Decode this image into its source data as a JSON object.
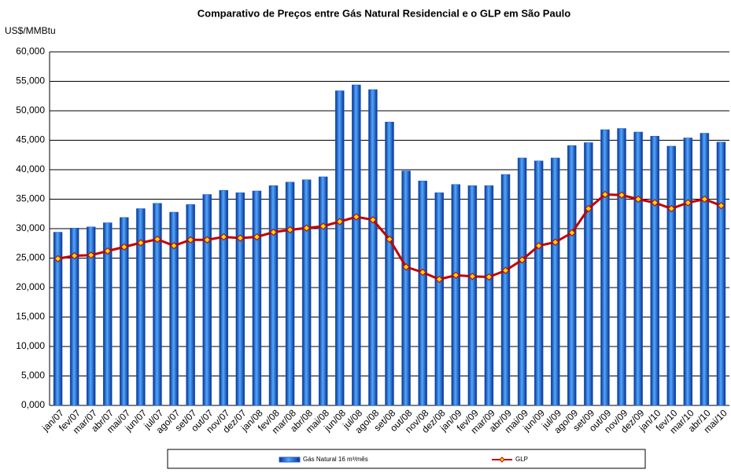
{
  "chart_data": {
    "type": "bar_line",
    "title": "Comparativo de Preços entre Gás Natural Residencial e o GLP em São Paulo",
    "y_label": "US$/MMBtu",
    "categories": [
      "jan/07",
      "fev/07",
      "mar/07",
      "abr/07",
      "mai/07",
      "jun/07",
      "jul/07",
      "ago/07",
      "set/07",
      "out/07",
      "nov/07",
      "dez/07",
      "jan/08",
      "fev/08",
      "mar/08",
      "abr/08",
      "mai/08",
      "jun/08",
      "jul/08",
      "ago/08",
      "set/08",
      "out/08",
      "nov/08",
      "dez/08",
      "jan/09",
      "fev/09",
      "mar/09",
      "abr/09",
      "mai/09",
      "jun/09",
      "jul/09",
      "ago/09",
      "set/09",
      "out/09",
      "nov/09",
      "dez/09",
      "jan/10",
      "fev/10",
      "mar/10",
      "abr/10",
      "mai/10"
    ],
    "series": [
      {
        "name": "Gás Natural 16 m³/mês",
        "type": "bar",
        "color": "#1f5fd6",
        "values": [
          29.4,
          30.1,
          30.3,
          31.0,
          31.9,
          33.4,
          34.3,
          32.8,
          34.1,
          35.8,
          36.5,
          36.1,
          36.4,
          37.3,
          37.9,
          38.3,
          38.8,
          53.4,
          54.4,
          53.6,
          48.1,
          39.8,
          38.1,
          36.1,
          37.5,
          37.3,
          37.3,
          39.2,
          42.0,
          41.5,
          42.0,
          44.1,
          44.6,
          46.8,
          47.0,
          46.4,
          45.7,
          44.0,
          45.4,
          46.2,
          44.7
        ]
      },
      {
        "name": "GLP",
        "type": "line",
        "color": "#c00000",
        "values": [
          24.9,
          25.4,
          25.5,
          26.2,
          26.9,
          27.6,
          28.2,
          27.1,
          28.1,
          28.1,
          28.6,
          28.4,
          28.6,
          29.4,
          29.8,
          30.1,
          30.4,
          31.2,
          32.0,
          31.5,
          28.2,
          23.5,
          22.6,
          21.4,
          22.1,
          21.9,
          21.8,
          22.9,
          24.7,
          27.1,
          27.7,
          29.3,
          33.4,
          35.8,
          35.7,
          35.0,
          34.4,
          33.4,
          34.4,
          35.0,
          33.9
        ]
      }
    ],
    "ylim": [
      0,
      60
    ],
    "yticks": [
      {
        "value": 0,
        "label": "0,000"
      },
      {
        "value": 5,
        "label": "5,000"
      },
      {
        "value": 10,
        "label": "10,000"
      },
      {
        "value": 15,
        "label": "15,000"
      },
      {
        "value": 20,
        "label": "20,000"
      },
      {
        "value": 25,
        "label": "25,000"
      },
      {
        "value": 30,
        "label": "30,000"
      },
      {
        "value": 35,
        "label": "35,000"
      },
      {
        "value": 40,
        "label": "40,000"
      },
      {
        "value": 45,
        "label": "45,000"
      },
      {
        "value": 50,
        "label": "50,000"
      },
      {
        "value": 55,
        "label": "55,000"
      },
      {
        "value": 60,
        "label": "60,000"
      }
    ],
    "grid": true,
    "legend": "bottom"
  }
}
